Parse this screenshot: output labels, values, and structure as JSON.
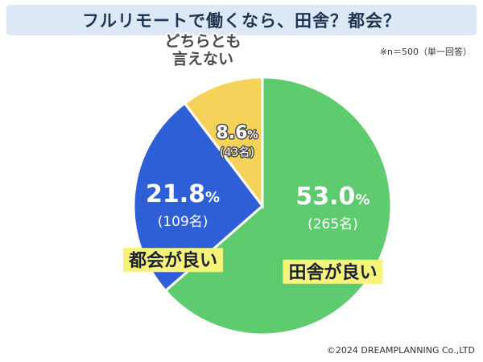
{
  "title": "フルリモートで働くなら、田舎？都会？",
  "note": "※n＝500（単一回答）",
  "credit": "©2024 DREAMPLANNING Co.,LTD",
  "chart_data": {
    "type": "pie",
    "title": "フルリモートで働くなら、田舎？都会？",
    "slices": [
      {
        "label": "田舎が良い",
        "value": 53.0,
        "value_text": "53.0",
        "unit": "%",
        "count_text": "(265名)",
        "color": "#5ecb6e"
      },
      {
        "label": "都会が良い",
        "value": 21.8,
        "value_text": "21.8",
        "unit": "%",
        "count_text": "(109名)",
        "color": "#2f5fd7"
      },
      {
        "label": "どちらとも言えない",
        "label_lines": [
          "どちらとも",
          "言えない"
        ],
        "value": 8.6,
        "value_text": "8.6",
        "unit": "%",
        "count_text": "(43名)",
        "color": "#f5d35a"
      }
    ],
    "start_angle_deg": 0,
    "direction": "clockwise",
    "label_box_color": "#f7f27a"
  }
}
